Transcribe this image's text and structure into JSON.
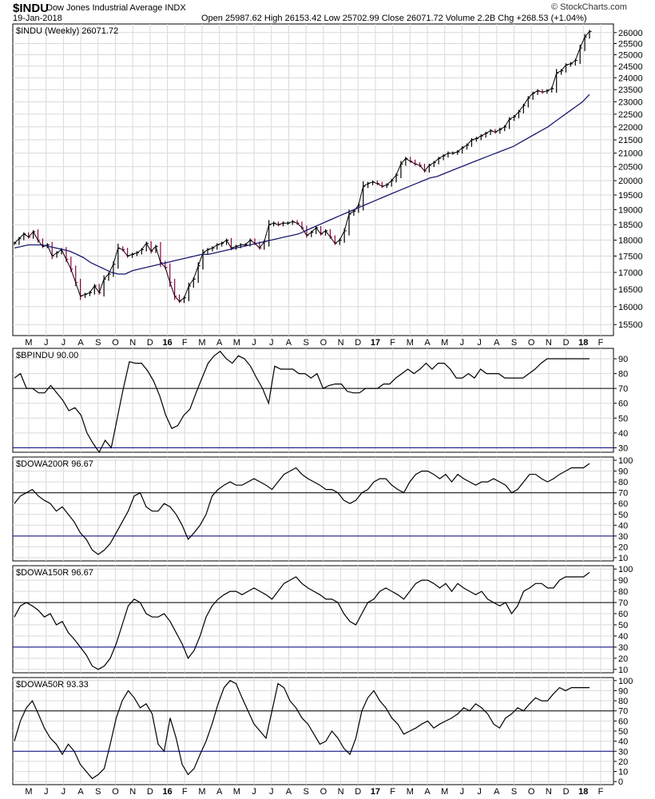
{
  "header": {
    "symbol": "$INDU",
    "name": "Dow Jones Industrial Average",
    "exchange": "INDX",
    "date": "19-Jan-2018",
    "quote": "Open 25987.62   High 26153.42   Low 25702.99   Close 26071.72   Volume 2.2B   Chg +268.53 (+1.04%)",
    "brand": "© StockCharts.com"
  },
  "colors": {
    "price_bar": "#000000",
    "down_bar": "#8b0045",
    "moving_average": "#191970",
    "reference_line": "#000080",
    "grid": "#d9d9d9"
  },
  "x_axis": {
    "labels": [
      "M",
      "J",
      "J",
      "A",
      "S",
      "O",
      "N",
      "D",
      "16",
      "F",
      "M",
      "A",
      "M",
      "J",
      "J",
      "A",
      "S",
      "O",
      "N",
      "D",
      "17",
      "F",
      "M",
      "A",
      "M",
      "J",
      "J",
      "A",
      "S",
      "O",
      "N",
      "D",
      "18",
      "F"
    ]
  },
  "chart_data": [
    {
      "type": "line",
      "label": "$INDU (Weekly) 26071.72",
      "ticks": [
        15500,
        16000,
        16500,
        17000,
        17500,
        18000,
        18500,
        19000,
        19500,
        20000,
        20500,
        21000,
        21500,
        22000,
        22500,
        23000,
        23500,
        24000,
        24500,
        25000,
        25500,
        26000
      ],
      "ylim": [
        15200,
        26400
      ],
      "scale": "log",
      "series": [
        {
          "values": [
            17900,
            18050,
            18200,
            18100,
            18270,
            18000,
            17800,
            17850,
            17500,
            17600,
            17700,
            17400,
            17100,
            16700,
            16300,
            16350,
            16400,
            16600,
            16400,
            16800,
            16950,
            17250,
            17750,
            17700,
            17500,
            17550,
            17600,
            17700,
            17900,
            17650,
            17800,
            17300,
            17150,
            16700,
            16300,
            16150,
            16250,
            16600,
            16800,
            17200,
            17600,
            17700,
            17750,
            17850,
            17900,
            18000,
            17750,
            17800,
            17850,
            17850,
            18000,
            17900,
            17750,
            17950,
            18500,
            18550,
            18500,
            18550,
            18550,
            18600,
            18550,
            18400,
            18150,
            18250,
            18400,
            18200,
            18300,
            18100,
            17900,
            18000,
            18300,
            18850,
            18950,
            19150,
            19800,
            19900,
            19950,
            19900,
            19800,
            19850,
            20000,
            20200,
            20600,
            20800,
            20700,
            20600,
            20550,
            20350,
            20550,
            20650,
            20800,
            20900,
            21000,
            21000,
            21050,
            21200,
            21300,
            21500,
            21550,
            21650,
            21750,
            21850,
            21800,
            21900,
            22000,
            22300,
            22400,
            22600,
            22850,
            23150,
            23350,
            23450,
            23400,
            23450,
            23550,
            24200,
            24300,
            24550,
            24600,
            24750,
            25300,
            25800,
            26050
          ]
        },
        {
          "values": [
            17750,
            17800,
            17850,
            17850,
            17850,
            17800,
            17750,
            17700,
            17650,
            17550,
            17450,
            17300,
            17200,
            17100,
            17000,
            16950,
            16950,
            17050,
            17100,
            17150,
            17200,
            17250,
            17300,
            17350,
            17400,
            17450,
            17500,
            17550,
            17550,
            17600,
            17650,
            17700,
            17750,
            17800,
            17850,
            17900,
            17950,
            18000,
            18050,
            18100,
            18150,
            18200,
            18300,
            18400,
            18500,
            18600,
            18700,
            18800,
            18900,
            19000,
            19100,
            19200,
            19300,
            19400,
            19500,
            19600,
            19700,
            19800,
            19900,
            20000,
            20100,
            20150,
            20250,
            20350,
            20450,
            20550,
            20650,
            20750,
            20850,
            20950,
            21050,
            21150,
            21250,
            21400,
            21550,
            21700,
            21850,
            22000,
            22200,
            22400,
            22600,
            22800,
            23000,
            23300
          ]
        }
      ],
      "text": {
        "last": "26071.72"
      }
    },
    {
      "type": "line",
      "label": "$BPINDU 90.00",
      "ticks": [
        30,
        40,
        50,
        60,
        70,
        80,
        90
      ],
      "ylim": [
        27,
        97
      ],
      "reference_lines": [
        70,
        30
      ],
      "series": [
        {
          "values": [
            77,
            80,
            70,
            70,
            67,
            67,
            72,
            67,
            62,
            55,
            57,
            52,
            40,
            33,
            27,
            35,
            30,
            50,
            70,
            88,
            87,
            87,
            82,
            75,
            65,
            52,
            43,
            45,
            52,
            56,
            67,
            77,
            87,
            92,
            95,
            90,
            87,
            92,
            90,
            85,
            77,
            70,
            60,
            85,
            83,
            83,
            83,
            80,
            80,
            77,
            80,
            70,
            72,
            73,
            73,
            68,
            67,
            67,
            70,
            70,
            70,
            73,
            73,
            77,
            80,
            83,
            80,
            83,
            87,
            83,
            87,
            87,
            83,
            77,
            77,
            80,
            77,
            83,
            80,
            80,
            80,
            77,
            77,
            77,
            77,
            80,
            83,
            87,
            90,
            90,
            90,
            90,
            90,
            90,
            90,
            90
          ]
        }
      ]
    },
    {
      "type": "line",
      "label": "$DOWA200R 96.67",
      "ticks": [
        10,
        20,
        30,
        40,
        50,
        60,
        70,
        80,
        90,
        100
      ],
      "ylim": [
        7,
        103
      ],
      "reference_lines": [
        70,
        30
      ],
      "series": [
        {
          "values": [
            60,
            67,
            70,
            73,
            67,
            63,
            60,
            53,
            57,
            50,
            43,
            33,
            27,
            17,
            13,
            17,
            23,
            33,
            43,
            53,
            67,
            70,
            57,
            53,
            53,
            60,
            57,
            50,
            40,
            27,
            33,
            40,
            50,
            67,
            73,
            77,
            80,
            77,
            77,
            80,
            83,
            80,
            77,
            73,
            80,
            87,
            90,
            93,
            87,
            83,
            80,
            77,
            73,
            73,
            70,
            63,
            60,
            63,
            70,
            73,
            80,
            83,
            83,
            77,
            73,
            70,
            80,
            87,
            90,
            90,
            87,
            83,
            87,
            80,
            87,
            83,
            80,
            77,
            80,
            80,
            83,
            80,
            77,
            70,
            73,
            80,
            87,
            87,
            83,
            80,
            83,
            87,
            90,
            93,
            93,
            93,
            97
          ]
        }
      ]
    },
    {
      "type": "line",
      "label": "$DOWA150R 96.67",
      "ticks": [
        10,
        20,
        30,
        40,
        50,
        60,
        70,
        80,
        90,
        100
      ],
      "ylim": [
        7,
        103
      ],
      "reference_lines": [
        70,
        30
      ],
      "series": [
        {
          "values": [
            57,
            67,
            70,
            67,
            63,
            57,
            60,
            50,
            53,
            43,
            37,
            30,
            23,
            13,
            10,
            13,
            20,
            33,
            50,
            67,
            73,
            70,
            60,
            57,
            57,
            60,
            53,
            43,
            33,
            20,
            27,
            40,
            57,
            67,
            73,
            77,
            80,
            80,
            77,
            80,
            83,
            80,
            77,
            73,
            80,
            87,
            90,
            93,
            87,
            83,
            80,
            77,
            73,
            73,
            70,
            60,
            53,
            50,
            60,
            70,
            73,
            80,
            83,
            80,
            77,
            73,
            80,
            87,
            90,
            90,
            87,
            83,
            87,
            80,
            87,
            83,
            80,
            77,
            80,
            73,
            70,
            67,
            70,
            60,
            67,
            80,
            83,
            87,
            87,
            83,
            83,
            90,
            93,
            93,
            93,
            93,
            97
          ]
        }
      ]
    },
    {
      "type": "line",
      "label": "$DOWA50R 93.33",
      "ticks": [
        0,
        10,
        20,
        30,
        40,
        50,
        60,
        70,
        80,
        90,
        100
      ],
      "ylim": [
        -3,
        103
      ],
      "reference_lines": [
        70,
        30
      ],
      "series": [
        {
          "values": [
            40,
            60,
            73,
            80,
            67,
            53,
            43,
            37,
            27,
            37,
            30,
            17,
            10,
            3,
            7,
            13,
            37,
            63,
            80,
            90,
            83,
            73,
            77,
            67,
            37,
            30,
            63,
            43,
            17,
            7,
            13,
            27,
            40,
            57,
            77,
            93,
            100,
            97,
            83,
            70,
            57,
            50,
            43,
            70,
            97,
            93,
            80,
            73,
            63,
            57,
            47,
            37,
            40,
            50,
            43,
            33,
            27,
            43,
            70,
            83,
            90,
            80,
            73,
            63,
            57,
            47,
            50,
            53,
            57,
            60,
            53,
            57,
            60,
            63,
            67,
            73,
            70,
            77,
            73,
            67,
            57,
            53,
            63,
            67,
            73,
            70,
            77,
            83,
            80,
            80,
            87,
            93,
            90,
            93,
            93,
            93,
            93
          ]
        }
      ]
    }
  ]
}
